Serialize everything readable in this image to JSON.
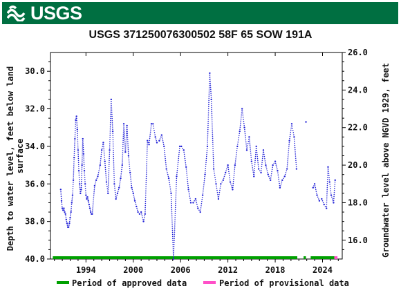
{
  "header": {
    "logo_text": "USGS",
    "logo_color": "#006F41"
  },
  "chart_data": {
    "type": "scatter",
    "title": "USGS 371250076300502 58F 65 SOW 191A",
    "ylabel_left": "Depth to water level, feet below land surface",
    "ylabel_left_lines": [
      "Depth to water level, feet below land",
      "surface"
    ],
    "ylabel_right": "Groundwater level above NGVD 1929, feet",
    "x_ticks": [
      1994,
      2000,
      2006,
      2012,
      2018,
      2024
    ],
    "xlim": [
      1989.5,
      2026.5
    ],
    "left_ticks": [
      "30.0",
      "32.0",
      "34.0",
      "36.0",
      "38.0",
      "40.0"
    ],
    "left_ylim": [
      29.0,
      40.0
    ],
    "right_ticks": [
      "16.0",
      "18.0",
      "20.0",
      "22.0",
      "24.0",
      "26.0"
    ],
    "right_ylim": [
      15.0,
      26.0
    ],
    "series": [
      {
        "name": "Depth to water level",
        "color": "#1f1fd6",
        "points": [
          [
            1990.8,
            36.3
          ],
          [
            1990.9,
            36.9
          ],
          [
            1991.0,
            37.3
          ],
          [
            1991.1,
            37.4
          ],
          [
            1991.2,
            37.3
          ],
          [
            1991.3,
            37.5
          ],
          [
            1991.4,
            37.6
          ],
          [
            1991.5,
            37.9
          ],
          [
            1991.6,
            38.1
          ],
          [
            1991.7,
            38.3
          ],
          [
            1991.8,
            38.3
          ],
          [
            1991.9,
            38.1
          ],
          [
            1992.0,
            37.8
          ],
          [
            1992.1,
            37.5
          ],
          [
            1992.2,
            37.0
          ],
          [
            1992.3,
            36.6
          ],
          [
            1992.4,
            35.8
          ],
          [
            1992.5,
            34.6
          ],
          [
            1992.6,
            33.6
          ],
          [
            1992.7,
            32.6
          ],
          [
            1992.8,
            32.4
          ],
          [
            1992.9,
            33.1
          ],
          [
            1993.0,
            34.2
          ],
          [
            1993.1,
            35.3
          ],
          [
            1993.2,
            36.0
          ],
          [
            1993.3,
            36.5
          ],
          [
            1993.4,
            36.3
          ],
          [
            1993.5,
            35.0
          ],
          [
            1993.6,
            33.6
          ],
          [
            1993.7,
            34.4
          ],
          [
            1993.8,
            35.3
          ],
          [
            1993.9,
            36.0
          ],
          [
            1994.0,
            36.6
          ],
          [
            1994.1,
            36.8
          ],
          [
            1994.2,
            36.7
          ],
          [
            1994.3,
            36.9
          ],
          [
            1994.4,
            37.1
          ],
          [
            1994.5,
            37.3
          ],
          [
            1994.6,
            37.5
          ],
          [
            1994.7,
            37.6
          ],
          [
            1994.8,
            37.6
          ],
          [
            1995.1,
            36.1
          ],
          [
            1995.3,
            35.8
          ],
          [
            1995.5,
            35.6
          ],
          [
            1995.8,
            35.0
          ],
          [
            1996.0,
            34.2
          ],
          [
            1996.2,
            33.8
          ],
          [
            1996.4,
            34.8
          ],
          [
            1996.6,
            35.9
          ],
          [
            1996.8,
            36.5
          ],
          [
            1997.0,
            34.2
          ],
          [
            1997.2,
            31.5
          ],
          [
            1997.4,
            33.2
          ],
          [
            1997.6,
            36.0
          ],
          [
            1997.8,
            36.8
          ],
          [
            1998.0,
            36.5
          ],
          [
            1998.2,
            36.2
          ],
          [
            1998.4,
            35.7
          ],
          [
            1998.6,
            35.0
          ],
          [
            1998.8,
            32.8
          ],
          [
            1999.0,
            34.3
          ],
          [
            1999.2,
            32.9
          ],
          [
            1999.4,
            34.5
          ],
          [
            1999.6,
            35.4
          ],
          [
            1999.8,
            36.2
          ],
          [
            2000.0,
            36.5
          ],
          [
            2000.2,
            36.9
          ],
          [
            2000.4,
            37.2
          ],
          [
            2000.6,
            37.5
          ],
          [
            2000.8,
            37.6
          ],
          [
            2001.0,
            37.5
          ],
          [
            2001.3,
            38.0
          ],
          [
            2001.5,
            37.6
          ],
          [
            2001.8,
            33.7
          ],
          [
            2002.0,
            33.9
          ],
          [
            2002.3,
            32.8
          ],
          [
            2002.5,
            32.8
          ],
          [
            2002.8,
            33.5
          ],
          [
            2003.0,
            33.8
          ],
          [
            2003.3,
            33.7
          ],
          [
            2003.6,
            33.4
          ],
          [
            2003.9,
            34.0
          ],
          [
            2004.2,
            35.2
          ],
          [
            2004.5,
            35.7
          ],
          [
            2004.8,
            36.5
          ],
          [
            2005.1,
            40.0
          ],
          [
            2005.5,
            35.6
          ],
          [
            2005.9,
            34.0
          ],
          [
            2006.1,
            34.0
          ],
          [
            2006.4,
            34.2
          ],
          [
            2006.7,
            35.1
          ],
          [
            2007.0,
            36.3
          ],
          [
            2007.3,
            37.0
          ],
          [
            2007.6,
            37.0
          ],
          [
            2007.9,
            36.8
          ],
          [
            2008.2,
            37.3
          ],
          [
            2008.5,
            37.5
          ],
          [
            2008.8,
            36.6
          ],
          [
            2009.1,
            35.5
          ],
          [
            2009.4,
            34.0
          ],
          [
            2009.7,
            30.1
          ],
          [
            2009.9,
            31.5
          ],
          [
            2010.2,
            35.2
          ],
          [
            2010.5,
            36.0
          ],
          [
            2010.8,
            36.8
          ],
          [
            2011.1,
            36.0
          ],
          [
            2011.4,
            35.8
          ],
          [
            2011.7,
            35.4
          ],
          [
            2012.0,
            35.0
          ],
          [
            2012.3,
            35.9
          ],
          [
            2012.6,
            36.3
          ],
          [
            2012.9,
            35.0
          ],
          [
            2013.2,
            34.0
          ],
          [
            2013.5,
            33.2
          ],
          [
            2013.8,
            32.0
          ],
          [
            2014.1,
            33.0
          ],
          [
            2014.4,
            34.2
          ],
          [
            2014.7,
            33.5
          ],
          [
            2015.0,
            34.8
          ],
          [
            2015.3,
            35.6
          ],
          [
            2015.6,
            34.0
          ],
          [
            2015.9,
            35.2
          ],
          [
            2016.2,
            35.4
          ],
          [
            2016.5,
            34.2
          ],
          [
            2016.8,
            35.0
          ],
          [
            2017.1,
            35.5
          ],
          [
            2017.4,
            35.8
          ],
          [
            2017.7,
            35.0
          ],
          [
            2018.0,
            34.8
          ],
          [
            2018.3,
            35.3
          ],
          [
            2018.6,
            36.2
          ],
          [
            2018.9,
            35.8
          ],
          [
            2019.2,
            35.6
          ],
          [
            2019.5,
            35.2
          ],
          [
            2019.8,
            33.7
          ],
          [
            2020.1,
            32.8
          ],
          [
            2020.4,
            33.5
          ],
          [
            2020.7,
            35.2
          ],
          [
            2021.9,
            32.7
          ],
          [
            2022.8,
            36.2
          ],
          [
            2023.0,
            36.0
          ],
          [
            2023.3,
            36.6
          ],
          [
            2023.6,
            36.9
          ],
          [
            2023.9,
            36.8
          ],
          [
            2024.2,
            37.1
          ],
          [
            2024.5,
            37.3
          ],
          [
            2024.7,
            35.1
          ],
          [
            2024.9,
            35.9
          ],
          [
            2025.1,
            36.6
          ],
          [
            2025.4,
            37.0
          ],
          [
            2025.6,
            35.8
          ]
        ]
      }
    ],
    "approved_bar_segments": [
      [
        1989.8,
        2020.8
      ],
      [
        2021.6,
        2021.9
      ],
      [
        2022.5,
        2025.5
      ]
    ],
    "provisional_bar_segments": [
      [
        2025.5,
        2025.9
      ]
    ],
    "legend": [
      {
        "label": "Period of approved data",
        "color": "#00A000"
      },
      {
        "label": "Period of provisional data",
        "color": "#FF50C8"
      }
    ]
  }
}
